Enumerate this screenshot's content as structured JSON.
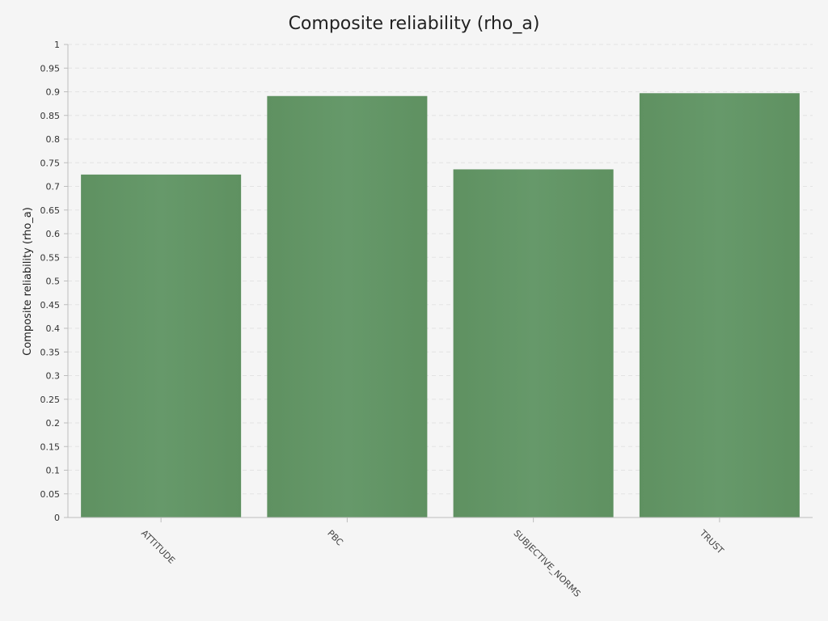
{
  "chart_data": {
    "type": "bar",
    "title": "Composite reliability (rho_a)",
    "xlabel": "",
    "ylabel": "Composite reliability (rho_a)",
    "categories": [
      "ATTITUDE",
      "PBC",
      "SUBJECTIVE_NORMS",
      "TRUST"
    ],
    "values": [
      0.725,
      0.891,
      0.736,
      0.897
    ],
    "ylim": [
      0,
      1
    ],
    "yticks": [
      "0",
      "0.05",
      "0.1",
      "0.15",
      "0.2",
      "0.25",
      "0.3",
      "0.35",
      "0.4",
      "0.45",
      "0.5",
      "0.55",
      "0.6",
      "0.65",
      "0.7",
      "0.75",
      "0.8",
      "0.85",
      "0.9",
      "0.95",
      "1"
    ],
    "grid": true,
    "bar_color": "#66996a",
    "bar_color_edge": "#5f9161"
  }
}
